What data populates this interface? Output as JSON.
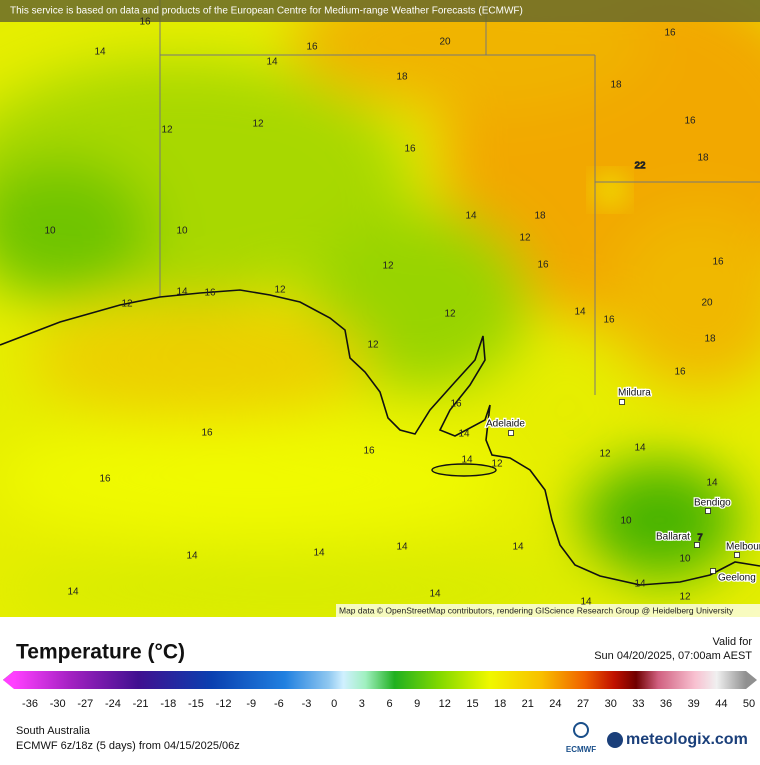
{
  "banner": "This service is based on data and products of the European Centre for Medium-range Weather Forecasts (ECMWF)",
  "attribution": "Map data © OpenStreetMap contributors, rendering GIScience Research Group @ Heidelberg University",
  "contour_labels": [
    16,
    14,
    16,
    14,
    20,
    16,
    18,
    18,
    16,
    12,
    12,
    16,
    22,
    18,
    10,
    10,
    14,
    18,
    12,
    12,
    16,
    16,
    12,
    14,
    16,
    12,
    20,
    14,
    12,
    16,
    12,
    18,
    16,
    16,
    16,
    14,
    16,
    14,
    12,
    14,
    12,
    16,
    14,
    10,
    7,
    14,
    14,
    14,
    14,
    10,
    14,
    14,
    14,
    12,
    14
  ],
  "cities": [
    "Mildura",
    "Adelaide",
    "Bendigo",
    "Ballarat",
    "Melbourne",
    "Geelong"
  ],
  "legend": {
    "title": "Temperature (°C)",
    "valid_label": "Valid for",
    "valid_time": "Sun 04/20/2025, 07:00am AEST",
    "ticks": [
      -36,
      -30,
      -27,
      -24,
      -21,
      -18,
      -15,
      -12,
      -9,
      -6,
      -3,
      0,
      3,
      6,
      9,
      12,
      15,
      18,
      21,
      24,
      27,
      30,
      33,
      36,
      39,
      44,
      50
    ]
  },
  "footer": {
    "region": "South Australia",
    "model": "ECMWF 6z/18z (5 days) from 04/15/2025/06z",
    "ecmwf_logo": "ECMWF",
    "brand": "meteologix.com"
  }
}
